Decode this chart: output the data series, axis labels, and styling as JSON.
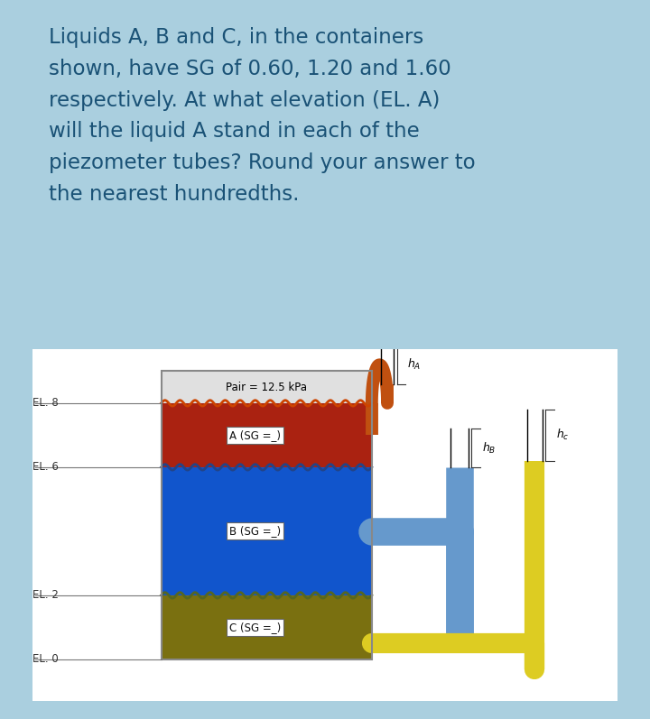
{
  "bg_color": "#aacfdf",
  "diagram_bg": "#f5f5f5",
  "text_color": "#1a5276",
  "title_text": "Liquids A, B and C, in the containers\nshown, have SG of 0.60, 1.20 and 1.60\nrespectively. At what elevation (EL. A)\nwill the liquid A stand in each of the\npiezometer tubes? Round your answer to\nthe nearest hundredths.",
  "title_fontsize": 16.5,
  "pair_label": "Pair = 12.5 kPa",
  "liquid_A_label": "A (SG =_)",
  "liquid_B_label": "B (SG =_)",
  "liquid_C_label": "C (SG =_)",
  "el_labels": [
    "EL. 8",
    "EL. 6",
    "EL. 2",
    "EL. 0"
  ],
  "color_A": "#aa2211",
  "color_B": "#1155cc",
  "color_C": "#7a7010",
  "color_tube_A": "#c05010",
  "color_tube_B": "#6699cc",
  "color_tube_C": "#ddcc22",
  "color_air": "#e0e0e0"
}
